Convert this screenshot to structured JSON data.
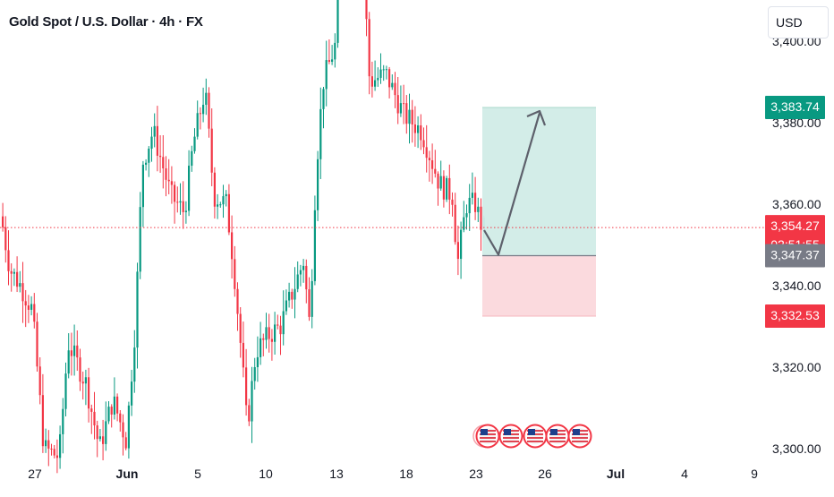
{
  "header": {
    "title": "Gold Spot / U.S. Dollar · 4h · FX",
    "currency": "USD"
  },
  "colors": {
    "up": "#089981",
    "down": "#f23645",
    "target_zone": "#d1ece7",
    "stop_zone": "#fbd8dc",
    "grey_label": "#787b86"
  },
  "price_labels": {
    "target": "3,383.74",
    "current": "3,354.27",
    "countdown": "02:51:55",
    "entry": "3,347.37",
    "stop": "3,332.53"
  },
  "event_icons": [
    "us-flag-icon",
    "us-flag-icon",
    "us-flag-icon",
    "us-flag-icon",
    "us-flag-icon"
  ],
  "chart_data": {
    "type": "candlestick",
    "title": "Gold Spot / U.S. Dollar · 4h · FX",
    "y_ticks": [
      "3,300.00",
      "3,320.00",
      "3,340.00",
      "3,360.00",
      "3,380.00",
      "3,400.00"
    ],
    "y_tick_values": [
      3300,
      3320,
      3340,
      3360,
      3380,
      3400
    ],
    "ylim": [
      3298,
      3416
    ],
    "x_ticks": [
      "27",
      "Jun",
      "5",
      "10",
      "13",
      "18",
      "23",
      "26",
      "Jul",
      "4",
      "9"
    ],
    "current_price": 3354.27,
    "position": {
      "type": "long",
      "entry": 3347.37,
      "target": 3383.74,
      "stop": 3332.53
    },
    "projection_path": [
      {
        "x": "Jun 23",
        "y": 3354
      },
      {
        "x": "Jun 24",
        "y": 3347.37
      },
      {
        "x": "Jun 25",
        "y": 3382
      }
    ]
  }
}
